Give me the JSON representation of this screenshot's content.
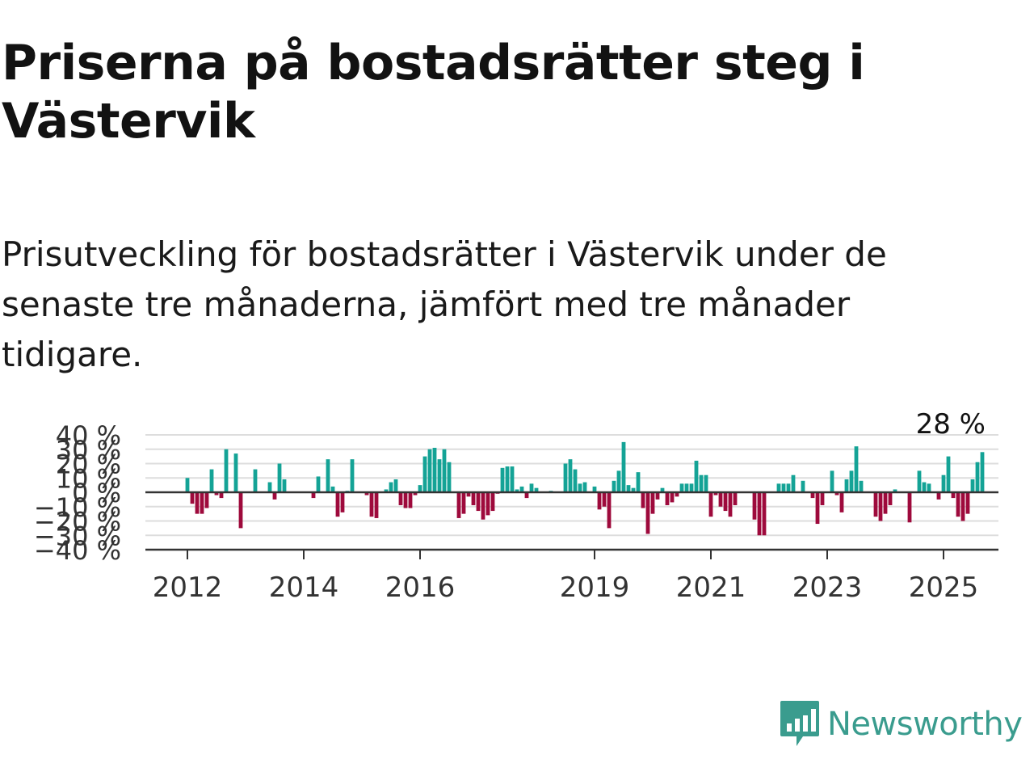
{
  "header": {
    "title": "Priserna på bostadsrätter steg i Västervik",
    "subtitle": "Prisutveckling för bostadsrätter i Västervik under de senaste tre månaderna, jämfört med tre månader tidigare."
  },
  "brand": {
    "name": "Newsworthy",
    "icon": "newsworthy-logo-icon",
    "color": "#3a9c8e"
  },
  "chart_data": {
    "type": "bar",
    "x_start": "2012-01",
    "x_step": "month",
    "ylim": [
      -40,
      40
    ],
    "y_ticks": [
      "40 %",
      "30 %",
      "20 %",
      "10 %",
      "0 %",
      "−10 %",
      "−20 %",
      "−30 %",
      "−40 %"
    ],
    "y_tick_values": [
      40,
      30,
      20,
      10,
      0,
      -10,
      -20,
      -30,
      -40
    ],
    "x_ticks": [
      "2012",
      "2014",
      "2016",
      "2019",
      "2021",
      "2023",
      "2025"
    ],
    "x_tick_dates": [
      "2012-01",
      "2014-01",
      "2016-01",
      "2019-01",
      "2021-01",
      "2023-01",
      "2025-01"
    ],
    "colors": {
      "positive": "#14a396",
      "negative": "#9e0a3c"
    },
    "grid": true,
    "annotation": {
      "text": "28 %",
      "date": "2025-03"
    },
    "values": [
      10,
      -8,
      -15,
      -15,
      -11,
      16,
      -2,
      -4,
      30,
      0,
      27,
      -25,
      0,
      0,
      16,
      0,
      0,
      7,
      -5,
      20,
      9,
      0,
      0,
      0,
      0,
      0,
      -4,
      11,
      0,
      23,
      4,
      -17,
      -14,
      1,
      23,
      0,
      0,
      -2,
      -17,
      -18,
      0,
      2,
      7,
      9,
      -9,
      -11,
      -11,
      -2,
      5,
      25,
      30,
      31,
      23,
      30,
      21,
      0,
      -18,
      -15,
      -3,
      -9,
      -13,
      -19,
      -16,
      -13,
      -1,
      17,
      18,
      18,
      2,
      4,
      -4,
      6,
      3,
      0,
      0,
      1,
      0,
      0,
      20,
      23,
      16,
      6,
      7,
      0,
      4,
      -12,
      -10,
      -25,
      8,
      15,
      35,
      5,
      3,
      14,
      -11,
      -29,
      -15,
      -5,
      3,
      -9,
      -7,
      -3,
      6,
      6,
      6,
      22,
      12,
      12,
      -17,
      -2,
      -10,
      -13,
      -17,
      -9,
      0,
      0,
      0,
      -19,
      -30,
      -30,
      0,
      0,
      6,
      6,
      6,
      12,
      0,
      8,
      0,
      -4,
      -22,
      -9,
      0,
      15,
      -2,
      -14,
      9,
      15,
      32,
      8,
      0,
      0,
      -17,
      -20,
      -15,
      -9,
      2,
      0,
      0,
      -21,
      0,
      15,
      7,
      6,
      0,
      -5,
      12,
      25,
      -4,
      -17,
      -20,
      -15,
      9,
      21,
      28
    ]
  }
}
